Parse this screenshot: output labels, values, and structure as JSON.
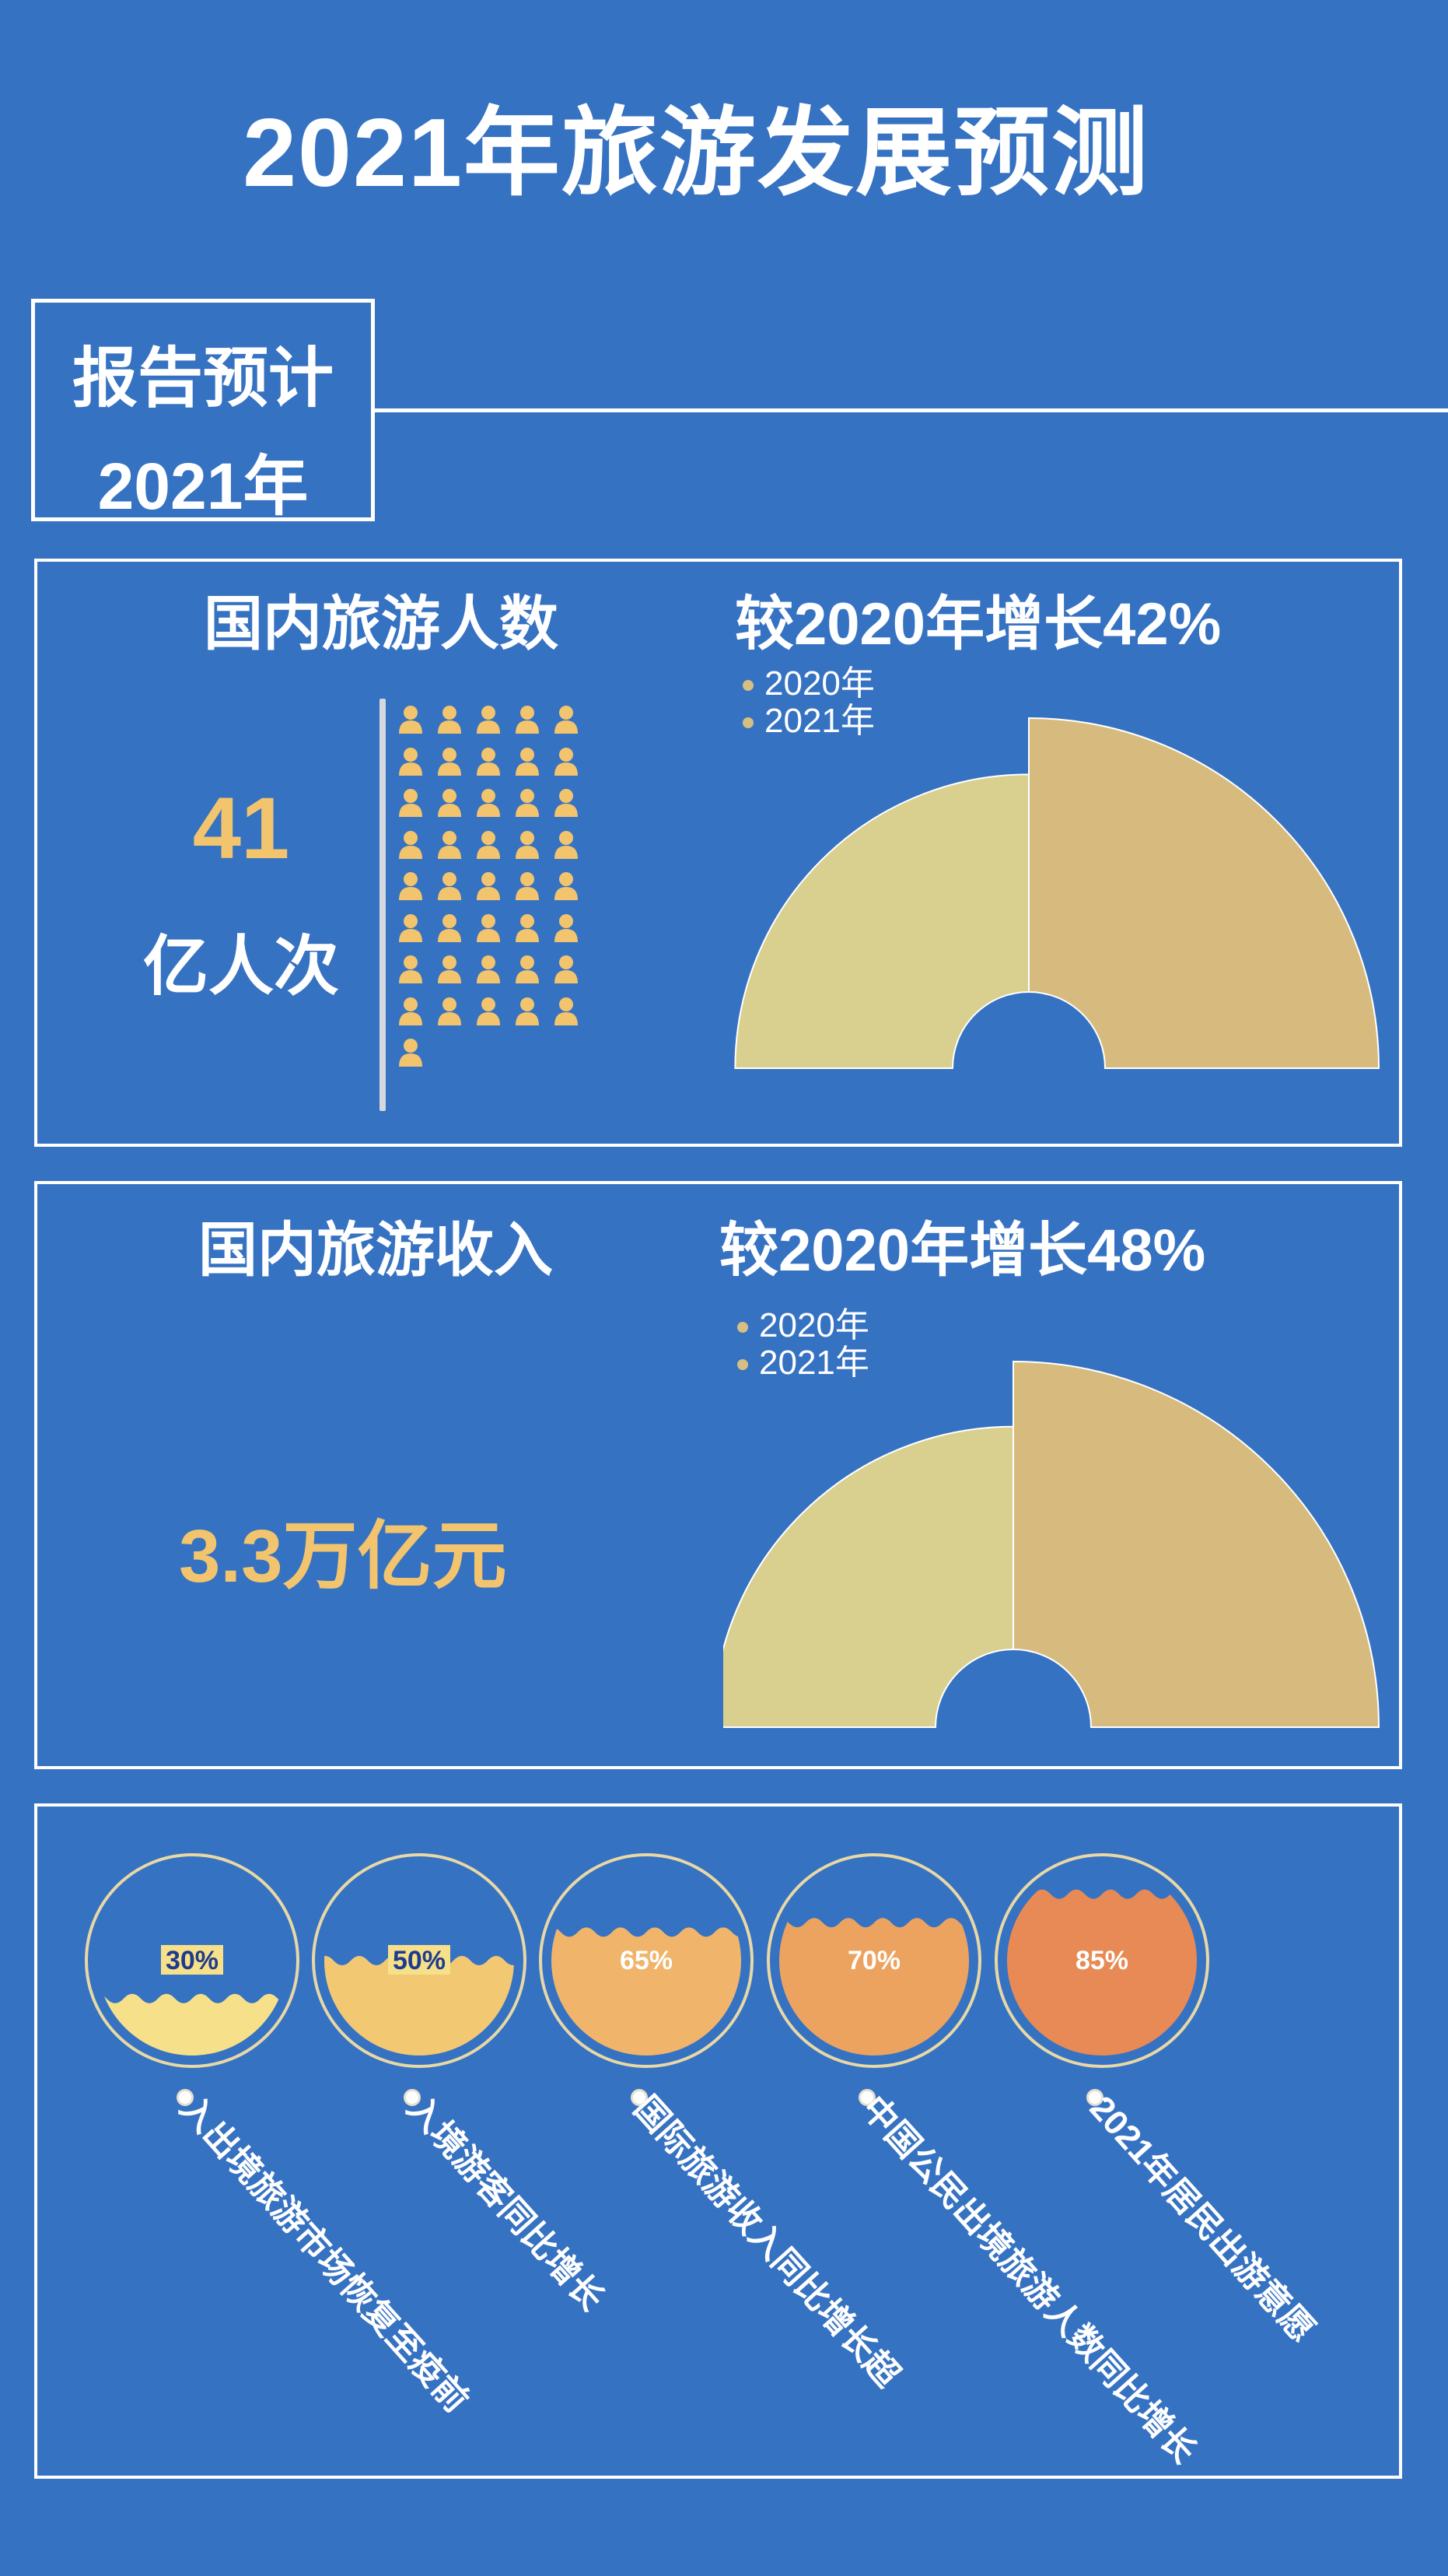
{
  "title": "2021年旅游发展预测",
  "tag": {
    "line1": "报告预计",
    "line2": "2021年"
  },
  "domestic_tourists": {
    "heading": "国内旅游人数",
    "value": "41",
    "unit": "亿人次",
    "growth": "较2020年增长42%"
  },
  "domestic_revenue": {
    "heading": "国内旅游收入",
    "value": "3.3万亿元",
    "growth": "较2020年增长48%"
  },
  "colors": {
    "background": "#3672c2",
    "gold": "#f2c46d",
    "sector_2020": "#d9cf8e",
    "sector_2021": "#d7bb7e"
  },
  "chart_data": [
    {
      "type": "pictogram",
      "icon": "person-icon",
      "count": 41,
      "unit_label": "亿人次"
    },
    {
      "type": "pie",
      "subtype": "polar-area",
      "series": [
        {
          "name": "2020年",
          "relative_size": 100
        },
        {
          "name": "2021年",
          "relative_size": 142
        }
      ],
      "annotation": "较2020年增长42%"
    },
    {
      "type": "pie",
      "subtype": "polar-area",
      "series": [
        {
          "name": "2020年",
          "relative_size": 100
        },
        {
          "name": "2021年",
          "relative_size": 148
        }
      ],
      "annotation": "较2020年增长48%"
    },
    {
      "type": "gauge",
      "subtype": "liquid-fill",
      "items": [
        {
          "label": "入出境旅游市场恢复至疫前",
          "value": 30,
          "text": "30%",
          "color": "#f7e08a",
          "text_color": "#1f3c8c"
        },
        {
          "label": "入境游客同比增长",
          "value": 50,
          "text": "50%",
          "color": "#f3c873",
          "text_color": "#1f3c8c"
        },
        {
          "label": "国际旅游收入同比增长超",
          "value": 65,
          "text": "65%",
          "color": "#f0b56a",
          "text_color": "#ffffff"
        },
        {
          "label": "中国公民出境旅游人数同比增长",
          "value": 70,
          "text": "70%",
          "color": "#eca360",
          "text_color": "#ffffff"
        },
        {
          "label": "2021年居民出游意愿",
          "value": 85,
          "text": "85%",
          "color": "#e88a55",
          "text_color": "#ffffff"
        }
      ]
    }
  ]
}
